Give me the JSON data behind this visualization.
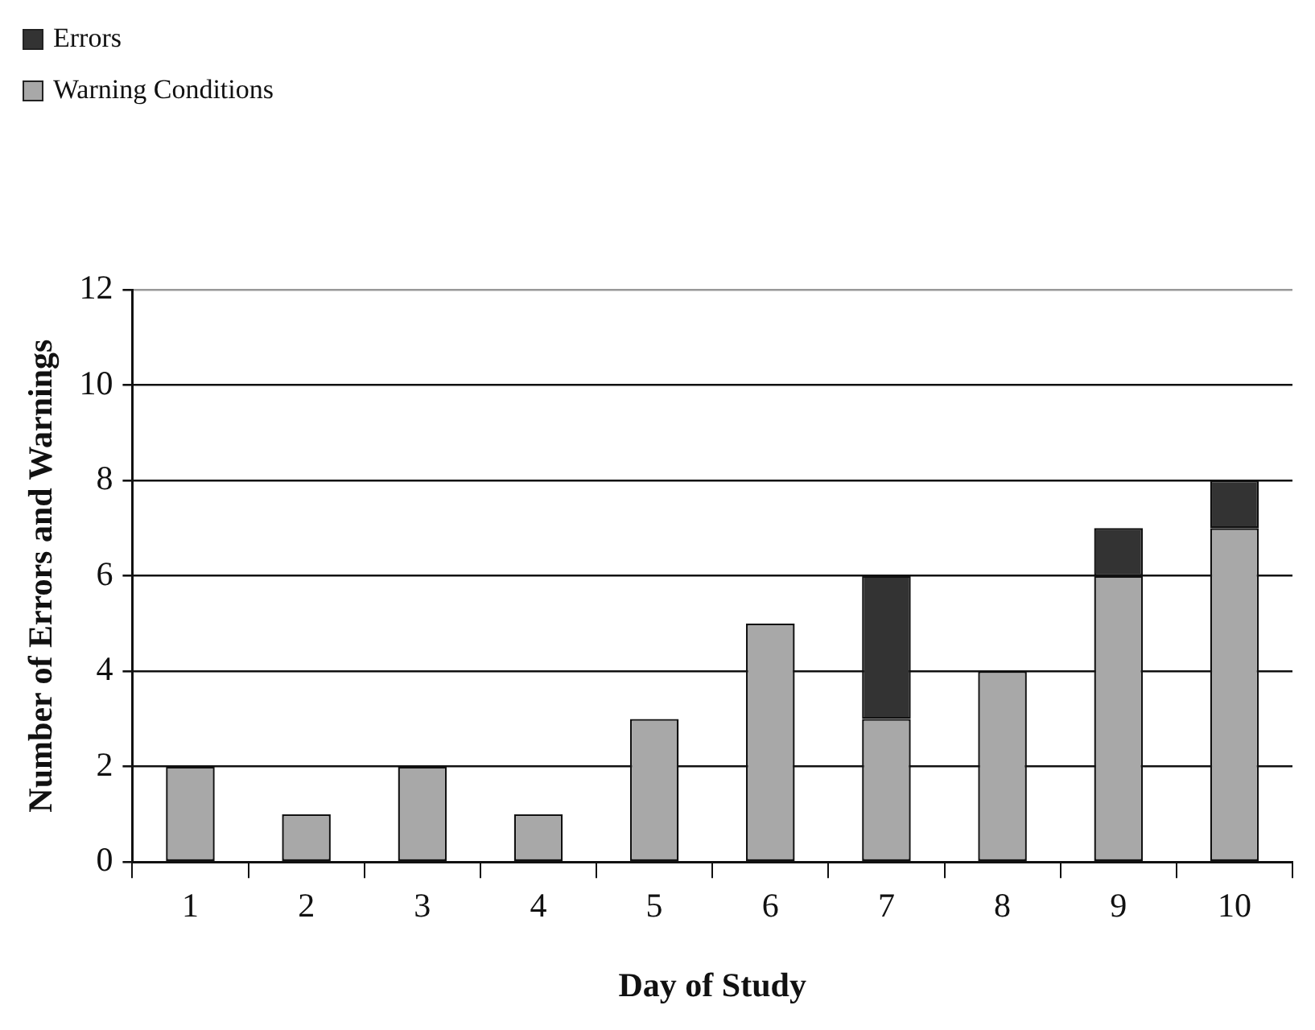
{
  "chart_data": {
    "type": "bar",
    "stacked": true,
    "xlabel": "Day of Study",
    "ylabel": "Number of Errors and Warnings",
    "categories": [
      "1",
      "2",
      "3",
      "4",
      "5",
      "6",
      "7",
      "8",
      "9",
      "10"
    ],
    "series": [
      {
        "name": "Warning Conditions",
        "color": "#a8a8a8",
        "values": [
          2,
          1,
          2,
          1,
          3,
          5,
          3,
          4,
          6,
          7
        ]
      },
      {
        "name": "Errors",
        "color": "#333333",
        "values": [
          0,
          0,
          0,
          0,
          0,
          0,
          3,
          0,
          1,
          1
        ]
      }
    ],
    "ylim": [
      0,
      12
    ],
    "yticks": [
      0,
      2,
      4,
      6,
      8,
      10,
      12
    ],
    "grid": "y",
    "legend": "top left"
  }
}
